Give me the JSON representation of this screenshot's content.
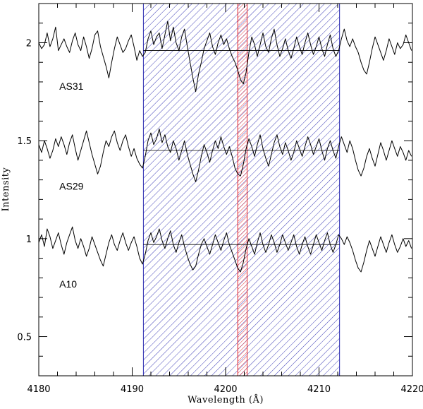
{
  "chart_data": {
    "type": "line",
    "xlabel": "Wavelength (Å)",
    "ylabel": "Intensity",
    "xlim": [
      4180,
      4220
    ],
    "ylim": [
      0.3,
      2.2
    ],
    "xticks": [
      4180,
      4190,
      4200,
      4210,
      4220
    ],
    "yticks": [
      0.5,
      1,
      1.5,
      2
    ],
    "xtick_labels": [
      "4180",
      "4190",
      "4200",
      "4210",
      "4220"
    ],
    "ytick_labels": [
      "0.5",
      "1",
      "1.5",
      "2"
    ],
    "shaded_regions": [
      {
        "x0": 4191.2,
        "x1": 4212.2,
        "color": "#2b2bb0",
        "pattern": "hatch"
      },
      {
        "x0": 4201.3,
        "x1": 4202.3,
        "color": "#e0202a",
        "pattern": "hatch"
      }
    ],
    "series": [
      {
        "name": "AS31",
        "color": "#000000",
        "continuum": {
          "y": 1.96,
          "x0": 4191.2,
          "x1": 4212.2
        },
        "label_pos": {
          "x": 4182.2,
          "y": 1.76
        },
        "x": [
          4180,
          4180.3,
          4180.6,
          4180.9,
          4181.2,
          4181.5,
          4181.8,
          4182.1,
          4182.4,
          4182.7,
          4183,
          4183.3,
          4183.6,
          4183.9,
          4184.2,
          4184.5,
          4184.8,
          4185.1,
          4185.4,
          4185.7,
          4186,
          4186.3,
          4186.6,
          4186.9,
          4187.2,
          4187.5,
          4187.8,
          4188.1,
          4188.4,
          4188.7,
          4189,
          4189.3,
          4189.6,
          4189.9,
          4190.2,
          4190.5,
          4190.8,
          4191.1,
          4191.4,
          4191.7,
          4192,
          4192.3,
          4192.6,
          4192.9,
          4193.2,
          4193.5,
          4193.8,
          4194.1,
          4194.4,
          4194.7,
          4195,
          4195.3,
          4195.6,
          4195.9,
          4196.2,
          4196.5,
          4196.8,
          4197.1,
          4197.4,
          4197.7,
          4198,
          4198.3,
          4198.6,
          4198.9,
          4199.2,
          4199.5,
          4199.8,
          4200.1,
          4200.4,
          4200.7,
          4201,
          4201.3,
          4201.6,
          4201.9,
          4202.2,
          4202.5,
          4202.8,
          4203.1,
          4203.4,
          4203.7,
          4204,
          4204.3,
          4204.6,
          4204.9,
          4205.2,
          4205.5,
          4205.8,
          4206.1,
          4206.4,
          4206.7,
          4207,
          4207.3,
          4207.6,
          4207.9,
          4208.2,
          4208.5,
          4208.8,
          4209.1,
          4209.4,
          4209.7,
          4210,
          4210.3,
          4210.6,
          4210.9,
          4211.2,
          4211.5,
          4211.8,
          4212.1,
          4212.4,
          4212.7,
          4213,
          4213.3,
          4213.6,
          4213.9,
          4214.2,
          4214.5,
          4214.8,
          4215.1,
          4215.4,
          4215.7,
          4216,
          4216.3,
          4216.6,
          4216.9,
          4217.2,
          4217.5,
          4217.8,
          4218.1,
          4218.4,
          4218.7,
          4219,
          4219.3,
          4219.6,
          4219.9
        ],
        "y": [
          2.0,
          1.97,
          1.99,
          2.05,
          1.98,
          2.02,
          2.08,
          1.96,
          1.99,
          2.02,
          1.98,
          1.95,
          2.01,
          2.05,
          1.99,
          1.96,
          2.03,
          1.98,
          1.92,
          1.97,
          2.04,
          2.06,
          1.98,
          1.93,
          1.88,
          1.82,
          1.9,
          1.97,
          2.03,
          1.99,
          1.95,
          1.97,
          2.01,
          2.04,
          1.98,
          1.91,
          1.96,
          1.93,
          1.95,
          2.02,
          2.06,
          1.99,
          2.03,
          2.05,
          1.97,
          2.04,
          2.11,
          2.01,
          2.08,
          2.0,
          1.96,
          2.03,
          2.07,
          1.98,
          1.9,
          1.82,
          1.75,
          1.84,
          1.9,
          1.97,
          2.01,
          2.05,
          1.98,
          1.94,
          2.0,
          2.04,
          1.99,
          2.02,
          1.97,
          1.93,
          1.9,
          1.86,
          1.81,
          1.79,
          1.85,
          1.95,
          2.03,
          1.99,
          1.93,
          1.99,
          2.05,
          1.98,
          1.95,
          2.02,
          2.07,
          1.99,
          1.93,
          1.97,
          2.02,
          1.96,
          1.92,
          1.97,
          2.03,
          1.98,
          1.94,
          2.0,
          2.05,
          1.99,
          1.94,
          1.98,
          2.03,
          1.97,
          1.93,
          1.99,
          2.04,
          1.97,
          1.93,
          1.96,
          2.02,
          2.07,
          2.01,
          1.98,
          2.02,
          1.98,
          1.95,
          1.9,
          1.86,
          1.84,
          1.9,
          1.97,
          2.03,
          1.99,
          1.95,
          1.91,
          1.96,
          2.02,
          1.98,
          1.94,
          2.0,
          1.97,
          1.99,
          2.04,
          2.0,
          1.96
        ]
      },
      {
        "name": "AS29",
        "color": "#000000",
        "continuum": {
          "y": 1.45,
          "x0": 4191.2,
          "x1": 4212.2
        },
        "label_pos": {
          "x": 4182.2,
          "y": 1.25
        },
        "x": [
          4180,
          4180.3,
          4180.6,
          4180.9,
          4181.2,
          4181.5,
          4181.8,
          4182.1,
          4182.4,
          4182.7,
          4183,
          4183.3,
          4183.6,
          4183.9,
          4184.2,
          4184.5,
          4184.8,
          4185.1,
          4185.4,
          4185.7,
          4186,
          4186.3,
          4186.6,
          4186.9,
          4187.2,
          4187.5,
          4187.8,
          4188.1,
          4188.4,
          4188.7,
          4189,
          4189.3,
          4189.6,
          4189.9,
          4190.2,
          4190.5,
          4190.8,
          4191.1,
          4191.4,
          4191.7,
          4192,
          4192.3,
          4192.6,
          4192.9,
          4193.2,
          4193.5,
          4193.8,
          4194.1,
          4194.4,
          4194.7,
          4195,
          4195.3,
          4195.6,
          4195.9,
          4196.2,
          4196.5,
          4196.8,
          4197.1,
          4197.4,
          4197.7,
          4198,
          4198.3,
          4198.6,
          4198.9,
          4199.2,
          4199.5,
          4199.8,
          4200.1,
          4200.4,
          4200.7,
          4201,
          4201.3,
          4201.6,
          4201.9,
          4202.2,
          4202.5,
          4202.8,
          4203.1,
          4203.4,
          4203.7,
          4204,
          4204.3,
          4204.6,
          4204.9,
          4205.2,
          4205.5,
          4205.8,
          4206.1,
          4206.4,
          4206.7,
          4207,
          4207.3,
          4207.6,
          4207.9,
          4208.2,
          4208.5,
          4208.8,
          4209.1,
          4209.4,
          4209.7,
          4210,
          4210.3,
          4210.6,
          4210.9,
          4211.2,
          4211.5,
          4211.8,
          4212.1,
          4212.4,
          4212.7,
          4213,
          4213.3,
          4213.6,
          4213.9,
          4214.2,
          4214.5,
          4214.8,
          4215.1,
          4215.4,
          4215.7,
          4216,
          4216.3,
          4216.6,
          4216.9,
          4217.2,
          4217.5,
          4217.8,
          4218.1,
          4218.4,
          4218.7,
          4219,
          4219.3,
          4219.6,
          4219.9
        ],
        "y": [
          1.48,
          1.44,
          1.5,
          1.46,
          1.41,
          1.45,
          1.51,
          1.47,
          1.52,
          1.48,
          1.43,
          1.49,
          1.53,
          1.46,
          1.4,
          1.45,
          1.5,
          1.55,
          1.49,
          1.43,
          1.38,
          1.33,
          1.37,
          1.44,
          1.5,
          1.47,
          1.52,
          1.55,
          1.49,
          1.45,
          1.5,
          1.53,
          1.47,
          1.42,
          1.46,
          1.41,
          1.38,
          1.36,
          1.42,
          1.5,
          1.54,
          1.48,
          1.51,
          1.56,
          1.49,
          1.53,
          1.47,
          1.44,
          1.5,
          1.46,
          1.4,
          1.45,
          1.5,
          1.43,
          1.38,
          1.33,
          1.29,
          1.35,
          1.42,
          1.48,
          1.44,
          1.39,
          1.45,
          1.5,
          1.46,
          1.52,
          1.47,
          1.43,
          1.47,
          1.42,
          1.36,
          1.33,
          1.32,
          1.38,
          1.46,
          1.51,
          1.47,
          1.42,
          1.48,
          1.53,
          1.46,
          1.41,
          1.37,
          1.43,
          1.49,
          1.53,
          1.47,
          1.43,
          1.49,
          1.45,
          1.4,
          1.44,
          1.5,
          1.46,
          1.42,
          1.47,
          1.52,
          1.48,
          1.43,
          1.47,
          1.51,
          1.45,
          1.4,
          1.46,
          1.5,
          1.45,
          1.41,
          1.47,
          1.52,
          1.48,
          1.44,
          1.5,
          1.46,
          1.4,
          1.35,
          1.32,
          1.36,
          1.42,
          1.46,
          1.41,
          1.37,
          1.43,
          1.49,
          1.45,
          1.4,
          1.45,
          1.5,
          1.46,
          1.42,
          1.47,
          1.44,
          1.4,
          1.45,
          1.42
        ]
      },
      {
        "name": "A10",
        "color": "#000000",
        "continuum": {
          "y": 0.97,
          "x0": 4191.2,
          "x1": 4212.2
        },
        "label_pos": {
          "x": 4182.2,
          "y": 0.75
        },
        "x": [
          4180,
          4180.3,
          4180.6,
          4180.9,
          4181.2,
          4181.5,
          4181.8,
          4182.1,
          4182.4,
          4182.7,
          4183,
          4183.3,
          4183.6,
          4183.9,
          4184.2,
          4184.5,
          4184.8,
          4185.1,
          4185.4,
          4185.7,
          4186,
          4186.3,
          4186.6,
          4186.9,
          4187.2,
          4187.5,
          4187.8,
          4188.1,
          4188.4,
          4188.7,
          4189,
          4189.3,
          4189.6,
          4189.9,
          4190.2,
          4190.5,
          4190.8,
          4191.1,
          4191.4,
          4191.7,
          4192,
          4192.3,
          4192.6,
          4192.9,
          4193.2,
          4193.5,
          4193.8,
          4194.1,
          4194.4,
          4194.7,
          4195,
          4195.3,
          4195.6,
          4195.9,
          4196.2,
          4196.5,
          4196.8,
          4197.1,
          4197.4,
          4197.7,
          4198,
          4198.3,
          4198.6,
          4198.9,
          4199.2,
          4199.5,
          4199.8,
          4200.1,
          4200.4,
          4200.7,
          4201,
          4201.3,
          4201.6,
          4201.9,
          4202.2,
          4202.5,
          4202.8,
          4203.1,
          4203.4,
          4203.7,
          4204,
          4204.3,
          4204.6,
          4204.9,
          4205.2,
          4205.5,
          4205.8,
          4206.1,
          4206.4,
          4206.7,
          4207,
          4207.3,
          4207.6,
          4207.9,
          4208.2,
          4208.5,
          4208.8,
          4209.1,
          4209.4,
          4209.7,
          4210,
          4210.3,
          4210.6,
          4210.9,
          4211.2,
          4211.5,
          4211.8,
          4212.1,
          4212.4,
          4212.7,
          4213,
          4213.3,
          4213.6,
          4213.9,
          4214.2,
          4214.5,
          4214.8,
          4215.1,
          4215.4,
          4215.7,
          4216,
          4216.3,
          4216.6,
          4216.9,
          4217.2,
          4217.5,
          4217.8,
          4218.1,
          4218.4,
          4218.7,
          4219,
          4219.3,
          4219.6,
          4219.9
        ],
        "y": [
          0.98,
          1.02,
          0.96,
          1.05,
          1.01,
          0.95,
          0.99,
          1.03,
          0.97,
          0.92,
          0.98,
          1.02,
          1.06,
          0.99,
          0.95,
          1.0,
          0.96,
          0.91,
          0.95,
          1.01,
          0.97,
          0.93,
          0.89,
          0.86,
          0.92,
          0.98,
          1.02,
          0.97,
          0.94,
          0.99,
          1.03,
          0.98,
          0.94,
          0.98,
          1.01,
          0.96,
          0.9,
          0.87,
          0.92,
          0.99,
          1.03,
          0.98,
          1.01,
          1.05,
          0.99,
          0.95,
          1.0,
          1.04,
          0.97,
          0.93,
          0.98,
          1.02,
          0.96,
          0.91,
          0.87,
          0.84,
          0.86,
          0.92,
          0.97,
          1.0,
          0.96,
          0.92,
          0.97,
          1.02,
          0.98,
          0.94,
          0.99,
          1.03,
          0.97,
          0.93,
          0.89,
          0.85,
          0.83,
          0.88,
          0.95,
          1.0,
          0.96,
          0.92,
          0.98,
          1.03,
          0.97,
          0.93,
          0.97,
          1.02,
          0.98,
          0.93,
          0.97,
          1.02,
          0.98,
          0.94,
          0.98,
          1.02,
          0.96,
          0.92,
          0.97,
          1.01,
          0.96,
          0.92,
          0.97,
          1.02,
          0.98,
          0.94,
          0.99,
          1.03,
          0.97,
          0.93,
          0.97,
          1.02,
          1.0,
          0.97,
          1.01,
          0.98,
          0.94,
          0.89,
          0.85,
          0.83,
          0.88,
          0.94,
          0.99,
          0.95,
          0.91,
          0.96,
          1.01,
          0.97,
          0.93,
          0.98,
          1.02,
          0.97,
          0.93,
          0.96,
          1.0,
          0.96,
          0.99,
          0.95
        ]
      }
    ]
  },
  "colors": {
    "blue_region": "#2b2bb0",
    "red_region": "#e0202a",
    "axis": "#000000"
  }
}
